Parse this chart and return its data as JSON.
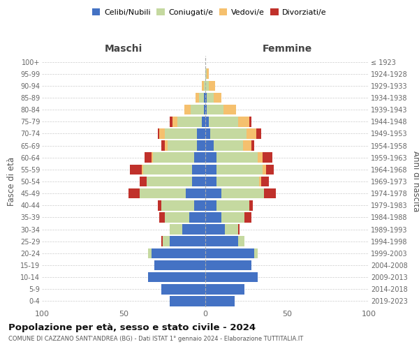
{
  "age_groups": [
    "0-4",
    "5-9",
    "10-14",
    "15-19",
    "20-24",
    "25-29",
    "30-34",
    "35-39",
    "40-44",
    "45-49",
    "50-54",
    "55-59",
    "60-64",
    "65-69",
    "70-74",
    "75-79",
    "80-84",
    "85-89",
    "90-94",
    "95-99",
    "100+"
  ],
  "birth_years": [
    "2019-2023",
    "2014-2018",
    "2009-2013",
    "2004-2008",
    "1999-2003",
    "1994-1998",
    "1989-1993",
    "1984-1988",
    "1979-1983",
    "1974-1978",
    "1969-1973",
    "1964-1968",
    "1959-1963",
    "1954-1958",
    "1949-1953",
    "1944-1948",
    "1939-1943",
    "1934-1938",
    "1929-1933",
    "1924-1928",
    "≤ 1923"
  ],
  "maschi": {
    "celibi": [
      22,
      27,
      35,
      31,
      33,
      22,
      14,
      10,
      7,
      12,
      8,
      8,
      7,
      5,
      5,
      2,
      1,
      1,
      0,
      0,
      0
    ],
    "coniugati": [
      0,
      0,
      0,
      0,
      2,
      4,
      8,
      15,
      20,
      28,
      28,
      30,
      25,
      18,
      20,
      15,
      8,
      3,
      1,
      0,
      0
    ],
    "vedovi": [
      0,
      0,
      0,
      0,
      0,
      0,
      0,
      0,
      0,
      0,
      0,
      1,
      1,
      2,
      3,
      3,
      4,
      2,
      1,
      0,
      0
    ],
    "divorziati": [
      0,
      0,
      0,
      0,
      0,
      1,
      0,
      3,
      2,
      7,
      4,
      7,
      4,
      2,
      1,
      2,
      0,
      0,
      0,
      0,
      0
    ]
  },
  "femmine": {
    "nubili": [
      18,
      24,
      32,
      28,
      30,
      20,
      12,
      10,
      7,
      10,
      7,
      7,
      7,
      5,
      3,
      2,
      1,
      1,
      0,
      0,
      0
    ],
    "coniugate": [
      0,
      0,
      0,
      0,
      2,
      4,
      8,
      14,
      20,
      26,
      26,
      28,
      25,
      18,
      22,
      18,
      10,
      4,
      2,
      1,
      0
    ],
    "vedove": [
      0,
      0,
      0,
      0,
      0,
      0,
      0,
      0,
      0,
      0,
      1,
      2,
      3,
      5,
      6,
      7,
      8,
      5,
      4,
      1,
      0
    ],
    "divorziate": [
      0,
      0,
      0,
      0,
      0,
      0,
      1,
      4,
      2,
      7,
      5,
      5,
      6,
      2,
      3,
      1,
      0,
      0,
      0,
      0,
      0
    ]
  },
  "colors": {
    "celibi": "#4472c4",
    "coniugati": "#c5d9a0",
    "vedovi": "#f5c06e",
    "divorziati": "#c0312b"
  },
  "title": "Popolazione per età, sesso e stato civile - 2024",
  "subtitle": "COMUNE DI CAZZANO SANT'ANDREA (BG) - Dati ISTAT 1° gennaio 2024 - Elaborazione TUTTITALIA.IT",
  "xlabel_left": "Maschi",
  "xlabel_right": "Femmine",
  "ylabel_left": "Fasce di età",
  "ylabel_right": "Anni di nascita",
  "xlim": 100,
  "bg_color": "#ffffff",
  "plot_bg_color": "#ffffff",
  "grid_color": "#cccccc"
}
